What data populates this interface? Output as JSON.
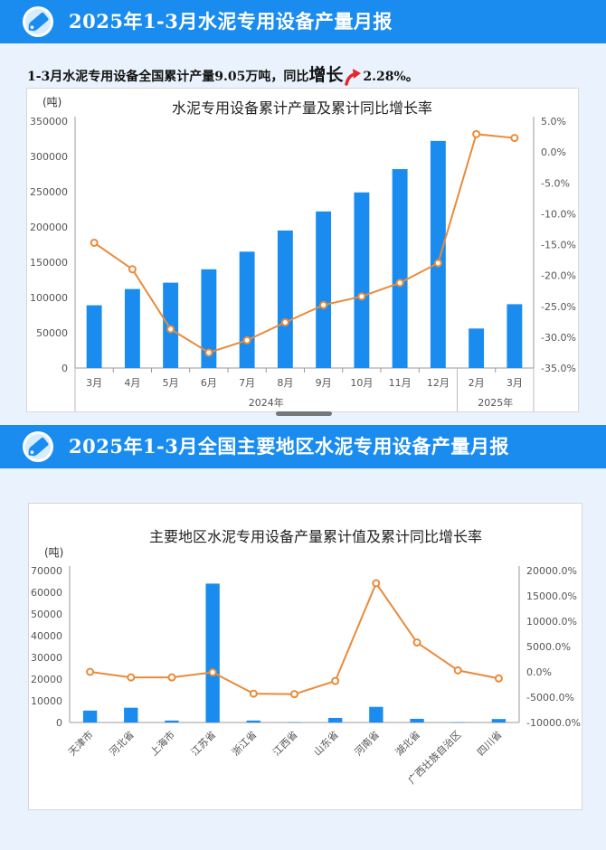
{
  "header1": {
    "title": "2025年1-3月水泥专用设备产量月报"
  },
  "summary": {
    "prefix": "1-3月水泥专用设备全国累计产量9.05万吨，同比",
    "trend": "增长",
    "value": "2.28%。"
  },
  "header2": {
    "title": "2025年1-3月全国主要地区水泥专用设备产量月报"
  },
  "colors": {
    "bar": "#1a8cf0",
    "line": "#e98b3a",
    "banner": "#1a8cf0"
  },
  "icons": {
    "banner": "price-tag-icon",
    "trend": "up-arrow-icon"
  },
  "chart_data": [
    {
      "type": "bar",
      "title": "水泥专用设备累计产量及累计同比增长率",
      "ylabel": "(吨)",
      "categories": [
        "3月",
        "4月",
        "5月",
        "6月",
        "7月",
        "8月",
        "9月",
        "10月",
        "11月",
        "12月",
        "2月",
        "3月"
      ],
      "groups": [
        {
          "label": "2024年",
          "from": 0,
          "to": 9
        },
        {
          "label": "2025年",
          "from": 10,
          "to": 11
        }
      ],
      "series": [
        {
          "type": "bar",
          "axis": "left",
          "values": [
            89000,
            112000,
            121000,
            140000,
            165000,
            195000,
            222000,
            249000,
            282000,
            322000,
            56000,
            90500
          ]
        },
        {
          "type": "line",
          "axis": "right",
          "values": [
            -14.7,
            -19.0,
            -28.7,
            -32.5,
            -30.5,
            -27.6,
            -24.8,
            -23.4,
            -21.2,
            -18.0,
            2.9,
            2.28
          ]
        }
      ],
      "ylim_left": [
        0,
        350000
      ],
      "yticks_left": [
        "0",
        "50000",
        "100000",
        "150000",
        "200000",
        "250000",
        "300000",
        "350000"
      ],
      "ylim_right": [
        -35,
        5
      ],
      "yticks_right": [
        "-35.0%",
        "-30.0%",
        "-25.0%",
        "-20.0%",
        "-15.0%",
        "-10.0%",
        "-5.0%",
        "0.0%",
        "5.0%"
      ]
    },
    {
      "type": "bar",
      "title": "主要地区水泥专用设备产量累计值及累计同比增长率",
      "ylabel": "(吨)",
      "categories": [
        "天津市",
        "河北省",
        "上海市",
        "江苏省",
        "浙江省",
        "江西省",
        "山东省",
        "河南省",
        "湖北省",
        "广西壮族自治区",
        "四川省"
      ],
      "series": [
        {
          "type": "bar",
          "axis": "left",
          "values": [
            5500,
            6800,
            900,
            64000,
            900,
            150,
            2100,
            7200,
            1700,
            100,
            1600
          ]
        },
        {
          "type": "line",
          "axis": "right",
          "values": [
            0,
            -1100,
            -1100,
            -100,
            -4300,
            -4400,
            -1800,
            17500,
            5800,
            300,
            -1300
          ]
        }
      ],
      "ylim_left": [
        0,
        70000
      ],
      "yticks_left": [
        "0",
        "10000",
        "20000",
        "30000",
        "40000",
        "50000",
        "60000",
        "70000"
      ],
      "ylim_right": [
        -10000,
        20000
      ],
      "yticks_right": [
        "-10000.0%",
        "-5000.0%",
        "0.0%",
        "5000.0%",
        "10000.0%",
        "15000.0%",
        "20000.0%"
      ]
    }
  ]
}
